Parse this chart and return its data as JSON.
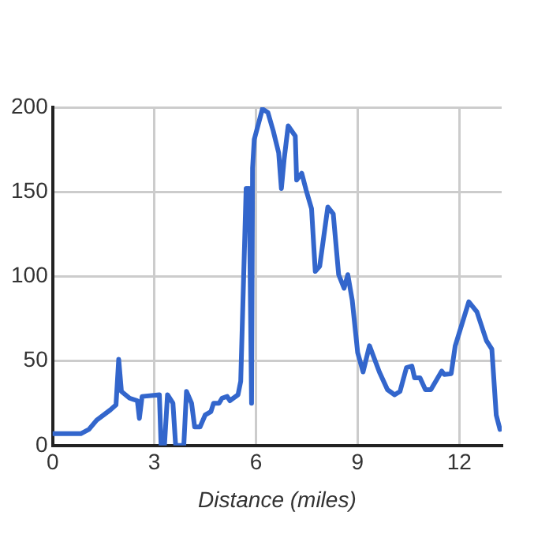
{
  "chart_data": {
    "type": "line",
    "xlabel": "Distance (miles)",
    "x": [
      0,
      0.83,
      1.07,
      1.3,
      1.7,
      1.87,
      1.95,
      2.03,
      2.27,
      2.5,
      2.56,
      2.64,
      3.15,
      3.2,
      3.3,
      3.39,
      3.55,
      3.63,
      3.87,
      3.95,
      4.1,
      4.19,
      4.35,
      4.5,
      4.67,
      4.75,
      4.91,
      5.0,
      5.15,
      5.23,
      5.47,
      5.55,
      5.71,
      5.8,
      5.87,
      5.9,
      5.95,
      6.19,
      6.35,
      6.51,
      6.67,
      6.75,
      6.83,
      6.95,
      7.16,
      7.2,
      7.35,
      7.48,
      7.64,
      7.75,
      7.88,
      8.12,
      8.28,
      8.44,
      8.6,
      8.71,
      8.84,
      9.0,
      9.16,
      9.35,
      9.64,
      9.88,
      10.09,
      10.25,
      10.44,
      10.6,
      10.68,
      10.84,
      11.0,
      11.16,
      11.48,
      11.56,
      11.76,
      11.88,
      12.28,
      12.52,
      12.8,
      12.96,
      13.09,
      13.2
    ],
    "series": [
      {
        "color": "#3366cc",
        "values": [
          7,
          7,
          9.5,
          15,
          21,
          24,
          51,
          32,
          28,
          26.5,
          16,
          29,
          30,
          0,
          0,
          30,
          25,
          0,
          0,
          32,
          25,
          11,
          11,
          18,
          20,
          25,
          25,
          28,
          29,
          26.5,
          30,
          38,
          152,
          152,
          25,
          164,
          181,
          199,
          197,
          186,
          173,
          152,
          169,
          189,
          183,
          157,
          161,
          151,
          140,
          103,
          106,
          141,
          137,
          101,
          93,
          101,
          86,
          55,
          43.5,
          59,
          43.5,
          33,
          30,
          32,
          46,
          47,
          40,
          40,
          33,
          33,
          44,
          42,
          42.5,
          59,
          85,
          79,
          62,
          57,
          18,
          9.5
        ]
      }
    ],
    "xlim": [
      0,
      13.25
    ],
    "xticks": [
      0,
      3,
      6,
      9,
      12
    ],
    "ylim": [
      0,
      200
    ],
    "yticks": [
      0,
      50,
      100,
      150,
      200
    ],
    "grid": true,
    "legend": false,
    "marker": "none",
    "line_style": "solid"
  }
}
